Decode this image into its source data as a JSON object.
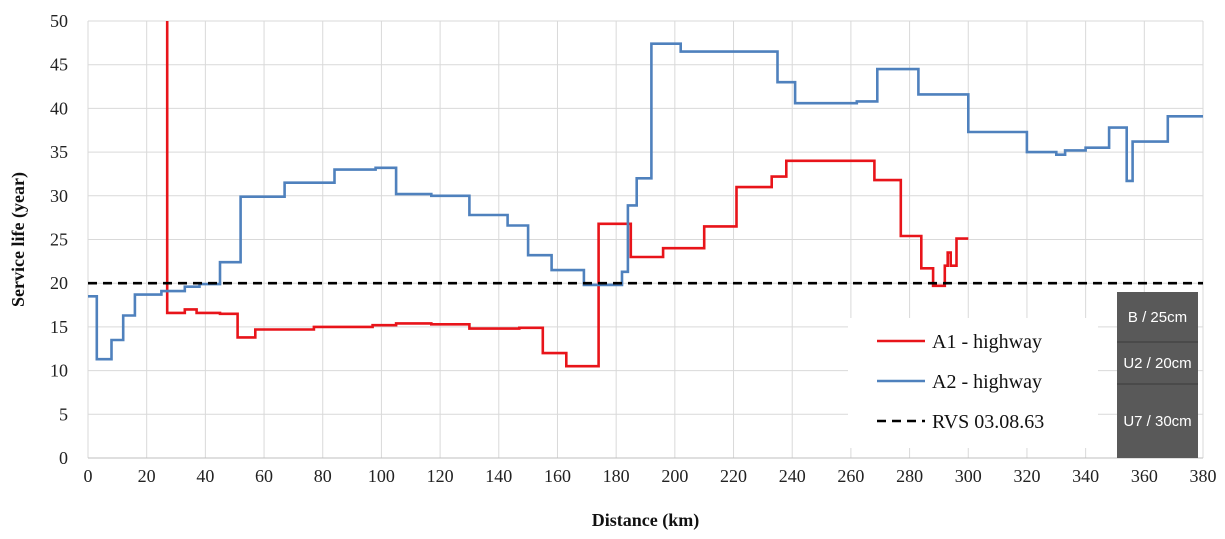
{
  "chart_data": {
    "type": "line",
    "title": "",
    "xlabel": "Distance (km)",
    "ylabel": "Service life (year)",
    "xlim": [
      0,
      380
    ],
    "ylim": [
      0,
      50
    ],
    "xticks": [
      "0",
      "20",
      "40",
      "60",
      "80",
      "100",
      "120",
      "140",
      "160",
      "180",
      "200",
      "220",
      "240",
      "260",
      "280",
      "300",
      "320",
      "340",
      "360",
      "380"
    ],
    "yticks": [
      "0",
      "5",
      "10",
      "15",
      "20",
      "25",
      "30",
      "35",
      "40",
      "45",
      "50"
    ],
    "grid": "on",
    "legend_position": "bottom-right",
    "series": [
      {
        "name": "A1 - highway",
        "color": "#e8141a",
        "style": "step",
        "x": [
          27,
          27,
          27,
          33,
          33,
          37,
          37,
          45,
          45,
          51,
          51,
          57,
          57,
          77,
          77,
          97,
          97,
          105,
          105,
          117,
          117,
          130,
          130,
          147,
          147,
          155,
          155,
          163,
          163,
          174,
          174,
          185,
          185,
          196,
          196,
          210,
          210,
          221,
          221,
          233,
          233,
          238,
          238,
          268,
          268,
          277,
          277,
          284,
          284,
          288,
          288,
          292,
          292,
          293,
          293,
          294,
          294,
          296,
          296,
          300
        ],
        "y": [
          50,
          50,
          16.6,
          16.6,
          17.0,
          17.0,
          16.6,
          16.6,
          16.5,
          16.5,
          13.8,
          13.8,
          14.7,
          14.7,
          15.0,
          15.0,
          15.2,
          15.2,
          15.4,
          15.4,
          15.3,
          15.3,
          14.8,
          14.8,
          14.9,
          14.9,
          12.0,
          12.0,
          10.5,
          10.5,
          26.8,
          26.8,
          23.0,
          23.0,
          24.0,
          24.0,
          26.5,
          26.5,
          31.0,
          31.0,
          32.2,
          32.2,
          34.0,
          34.0,
          31.8,
          31.8,
          25.4,
          25.4,
          21.7,
          21.7,
          19.7,
          19.7,
          22.0,
          22.0,
          23.5,
          23.5,
          22.0,
          22.0,
          25.1,
          25.1
        ]
      },
      {
        "name": "A2 - highway",
        "color": "#4f81bd",
        "style": "step",
        "x": [
          0,
          3,
          3,
          8,
          8,
          12,
          12,
          16,
          16,
          25,
          25,
          33,
          33,
          38,
          38,
          45,
          45,
          52,
          52,
          67,
          67,
          84,
          84,
          98,
          98,
          105,
          105,
          117,
          117,
          130,
          130,
          143,
          143,
          150,
          150,
          158,
          158,
          169,
          169,
          182,
          182,
          184,
          184,
          187,
          187,
          192,
          192,
          202,
          202,
          235,
          235,
          241,
          241,
          262,
          262,
          269,
          269,
          283,
          283,
          300,
          300,
          320,
          320,
          330,
          330,
          333,
          333,
          340,
          340,
          348,
          348,
          354,
          354,
          356,
          356,
          368,
          368,
          380
        ],
        "y": [
          18.5,
          18.5,
          11.3,
          11.3,
          13.5,
          13.5,
          16.3,
          16.3,
          18.7,
          18.7,
          19.1,
          19.1,
          19.6,
          19.6,
          19.9,
          19.9,
          22.4,
          22.4,
          29.9,
          29.9,
          31.5,
          31.5,
          33.0,
          33.0,
          33.2,
          33.2,
          30.2,
          30.2,
          30.0,
          30.0,
          27.8,
          27.8,
          26.6,
          26.6,
          23.2,
          23.2,
          21.5,
          21.5,
          19.8,
          19.8,
          21.3,
          21.3,
          28.9,
          28.9,
          32.0,
          32.0,
          47.4,
          47.4,
          46.5,
          46.5,
          43.0,
          43.0,
          40.6,
          40.6,
          40.8,
          40.8,
          44.5,
          44.5,
          41.6,
          41.6,
          37.3,
          37.3,
          35.0,
          35.0,
          34.7,
          34.7,
          35.2,
          35.2,
          35.5,
          35.5,
          37.8,
          37.8,
          31.7,
          31.7,
          36.2,
          36.2,
          39.1,
          39.1
        ]
      },
      {
        "name": "RVS 03.08.63",
        "color": "#000000",
        "style": "dashed",
        "x": [
          0,
          380
        ],
        "y": [
          20,
          20
        ]
      }
    ],
    "pavement_layers": [
      "B / 25cm",
      "U2 / 20cm",
      "U7 / 30cm"
    ]
  }
}
